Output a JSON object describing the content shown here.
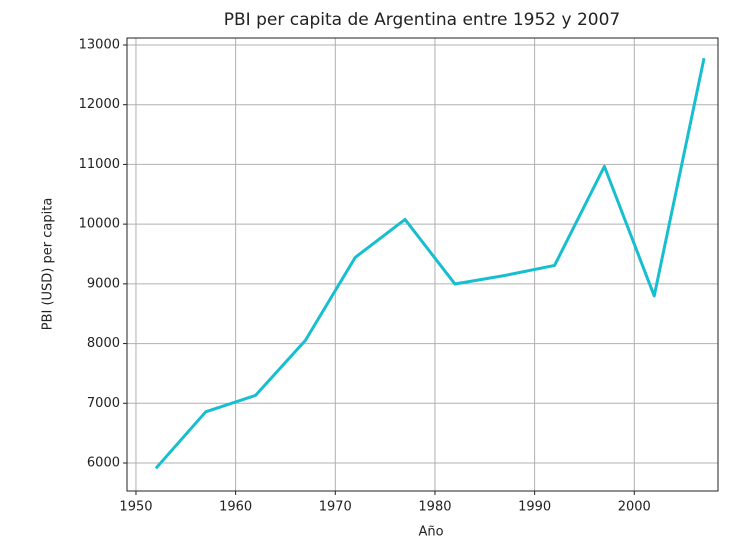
{
  "chart_data": {
    "type": "line",
    "title": "PBI per capita de Argentina entre 1952 y 2007",
    "x_label": "Año",
    "y_label": "PBI (USD) per capita",
    "x": [
      1952,
      1957,
      1962,
      1967,
      1972,
      1977,
      1982,
      1987,
      1992,
      1997,
      2002,
      2007
    ],
    "series": [
      {
        "name": "Argentina",
        "color": "#17becf",
        "values": [
          5911,
          6857,
          7133,
          8053,
          9443,
          10079,
          8998,
          9140,
          9308,
          10967,
          8798,
          12779
        ]
      }
    ],
    "xlim": [
      1949.1,
      2008.4
    ],
    "xticks": [
      1950,
      1960,
      1970,
      1980,
      1990,
      2000
    ],
    "ylim": [
      5531,
      13117
    ],
    "yticks": [
      6000,
      7000,
      8000,
      9000,
      10000,
      11000,
      12000,
      13000
    ],
    "grid": true
  }
}
